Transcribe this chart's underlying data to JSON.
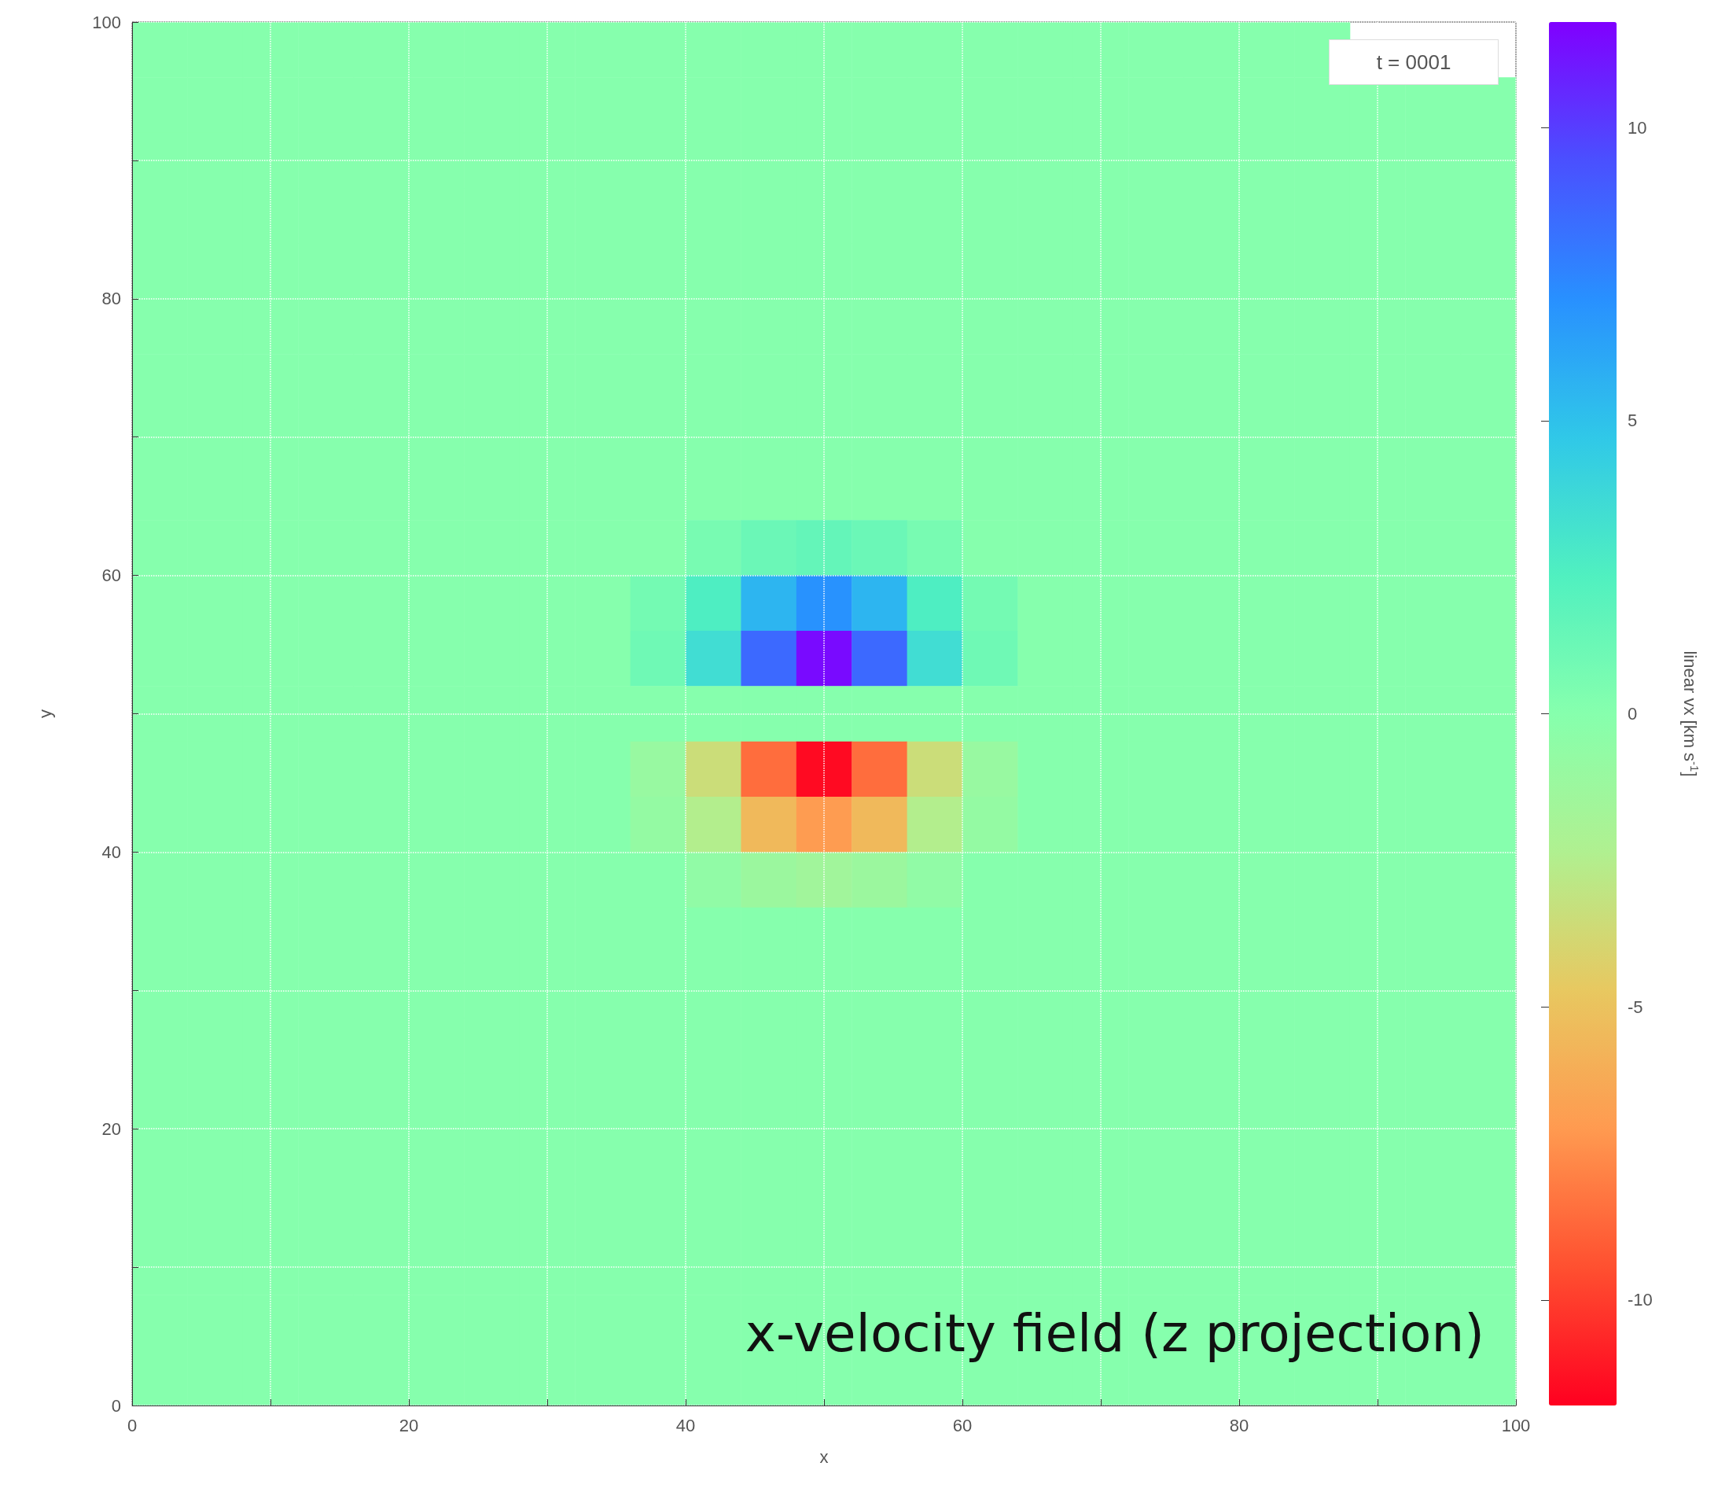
{
  "chart_data": {
    "type": "heatmap",
    "xlabel": "x",
    "ylabel": "y",
    "clabel": "linear vx [km s$^{-1}$]",
    "annotations": [
      "t = 0001",
      "x-velocity field (z projection)"
    ],
    "x": [
      2,
      6,
      10,
      14,
      18,
      22,
      26,
      30,
      34,
      38,
      42,
      46,
      50,
      54,
      58,
      62,
      66,
      70,
      74,
      78,
      82,
      86,
      90,
      94,
      98
    ],
    "y": [
      98,
      94,
      90,
      86,
      82,
      78,
      74,
      70,
      66,
      62,
      58,
      54,
      50,
      46,
      42,
      38,
      34,
      30,
      26,
      22,
      18,
      14,
      10,
      6,
      2
    ],
    "xlim": [
      0,
      100
    ],
    "ylim": [
      0,
      100
    ],
    "xticks": [
      0,
      {
        "value": 10,
        "label": null
      },
      20,
      {
        "value": 30,
        "label": null
      },
      40,
      {
        "value": 50,
        "label": null
      },
      60,
      {
        "value": 70,
        "label": null
      },
      80,
      {
        "value": 90,
        "label": null
      },
      100
    ],
    "yticks": [
      0,
      {
        "value": 10,
        "label": null
      },
      20,
      {
        "value": 30,
        "label": null
      },
      40,
      {
        "value": 50,
        "label": null
      },
      60,
      {
        "value": 70,
        "label": null
      },
      80,
      {
        "value": 90,
        "label": null
      },
      100
    ],
    "clim": [
      -11.8,
      11.8
    ],
    "cticks": [
      -10,
      -5,
      0,
      5,
      10
    ],
    "grid": true,
    "cells": [
      [
        0,
        0,
        0,
        0,
        0,
        0,
        0,
        0,
        0,
        0,
        0,
        0,
        0,
        0,
        0,
        0,
        0,
        0,
        0,
        0,
        0,
        0,
        null,
        null,
        null
      ],
      [
        0,
        0,
        0,
        0,
        0,
        0,
        0,
        0,
        0,
        0,
        0,
        0,
        0,
        0,
        0,
        0,
        0,
        0,
        0,
        0,
        0,
        0,
        0,
        0,
        0
      ],
      [
        0,
        0,
        0,
        0,
        0,
        0,
        0,
        0,
        0,
        0,
        0,
        0,
        0,
        0,
        0,
        0,
        0,
        0,
        0,
        0,
        0,
        0,
        0,
        0,
        0
      ],
      [
        0,
        0,
        0,
        0,
        0,
        0,
        0,
        0,
        0,
        0,
        0,
        0,
        0,
        0,
        0,
        0,
        0,
        0,
        0,
        0,
        0,
        0,
        0,
        0,
        0
      ],
      [
        0,
        0,
        0,
        0,
        0,
        0,
        0,
        0,
        0,
        0,
        0,
        0,
        0,
        0,
        0,
        0,
        0,
        0,
        0,
        0,
        0,
        0,
        0,
        0,
        0
      ],
      [
        0,
        0,
        0,
        0,
        0,
        0,
        0,
        0,
        0,
        0,
        0,
        0,
        0,
        0,
        0,
        0,
        0,
        0,
        0,
        0,
        0,
        0,
        0,
        0,
        0
      ],
      [
        0,
        0,
        0,
        0,
        0,
        0,
        0,
        0,
        0,
        0,
        0,
        0,
        0,
        0,
        0,
        0,
        0,
        0,
        0,
        0,
        0,
        0,
        0,
        0,
        0
      ],
      [
        0,
        0,
        0,
        0,
        0,
        0,
        0,
        0,
        0,
        0,
        0,
        0,
        0,
        0,
        0,
        0,
        0,
        0,
        0,
        0,
        0,
        0,
        0,
        0,
        0
      ],
      [
        0,
        0,
        0,
        0,
        0,
        0,
        0,
        0,
        0,
        0,
        0,
        0,
        0,
        0,
        0,
        0,
        0,
        0,
        0,
        0,
        0,
        0,
        0,
        0,
        0
      ],
      [
        0,
        0,
        0,
        0,
        0,
        0,
        0,
        0,
        0,
        0,
        0.6,
        1.2,
        1.5,
        1.2,
        0.6,
        0,
        0,
        0,
        0,
        0,
        0,
        0,
        0,
        0,
        0
      ],
      [
        0,
        0,
        0,
        0,
        0,
        0,
        0,
        0,
        0,
        0.8,
        2.5,
        5.5,
        7,
        5.5,
        2.5,
        0.8,
        0,
        0,
        0,
        0,
        0,
        0,
        0,
        0,
        0
      ],
      [
        0,
        0,
        0,
        0,
        0,
        0,
        0,
        0,
        0,
        1,
        3.5,
        8.5,
        11.5,
        8.5,
        3.5,
        1,
        0,
        0,
        0,
        0,
        0,
        0,
        0,
        0,
        0
      ],
      [
        0,
        0,
        0,
        0,
        0,
        0,
        0,
        0,
        0,
        0,
        0,
        0,
        0,
        0,
        0,
        0,
        0,
        0,
        0,
        0,
        0,
        0,
        0,
        0,
        0
      ],
      [
        0,
        0,
        0,
        0,
        0,
        0,
        0,
        0,
        0,
        -1,
        -3.5,
        -8.5,
        -11.5,
        -8.5,
        -3.5,
        -1,
        0,
        0,
        0,
        0,
        0,
        0,
        0,
        0,
        0
      ],
      [
        0,
        0,
        0,
        0,
        0,
        0,
        0,
        0,
        0,
        -0.8,
        -2.5,
        -5.5,
        -7,
        -5.5,
        -2.5,
        -0.8,
        0,
        0,
        0,
        0,
        0,
        0,
        0,
        0,
        0
      ],
      [
        0,
        0,
        0,
        0,
        0,
        0,
        0,
        0,
        0,
        0,
        -0.6,
        -1.2,
        -1.5,
        -1.2,
        -0.6,
        0,
        0,
        0,
        0,
        0,
        0,
        0,
        0,
        0,
        0
      ],
      [
        0,
        0,
        0,
        0,
        0,
        0,
        0,
        0,
        0,
        0,
        0,
        0,
        0,
        0,
        0,
        0,
        0,
        0,
        0,
        0,
        0,
        0,
        0,
        0,
        0
      ],
      [
        0,
        0,
        0,
        0,
        0,
        0,
        0,
        0,
        0,
        0,
        0,
        0,
        0,
        0,
        0,
        0,
        0,
        0,
        0,
        0,
        0,
        0,
        0,
        0,
        0
      ],
      [
        0,
        0,
        0,
        0,
        0,
        0,
        0,
        0,
        0,
        0,
        0,
        0,
        0,
        0,
        0,
        0,
        0,
        0,
        0,
        0,
        0,
        0,
        0,
        0,
        0
      ],
      [
        0,
        0,
        0,
        0,
        0,
        0,
        0,
        0,
        0,
        0,
        0,
        0,
        0,
        0,
        0,
        0,
        0,
        0,
        0,
        0,
        0,
        0,
        0,
        0,
        0
      ],
      [
        0,
        0,
        0,
        0,
        0,
        0,
        0,
        0,
        0,
        0,
        0,
        0,
        0,
        0,
        0,
        0,
        0,
        0,
        0,
        0,
        0,
        0,
        0,
        0,
        0
      ],
      [
        0,
        0,
        0,
        0,
        0,
        0,
        0,
        0,
        0,
        0,
        0,
        0,
        0,
        0,
        0,
        0,
        0,
        0,
        0,
        0,
        0,
        0,
        0,
        0,
        0
      ],
      [
        0,
        0,
        0,
        0,
        0,
        0,
        0,
        0,
        0,
        0,
        0,
        0,
        0,
        0,
        0,
        0,
        0,
        0,
        0,
        0,
        0,
        0,
        0,
        0,
        0
      ],
      [
        0,
        0,
        0,
        0,
        0,
        0,
        0,
        0,
        0,
        0,
        0,
        0,
        0,
        0,
        0,
        0,
        0,
        0,
        0,
        0,
        0,
        0,
        0,
        0,
        0
      ],
      [
        0,
        0,
        0,
        0,
        0,
        0,
        0,
        0,
        0,
        0,
        0,
        0,
        0,
        0,
        0,
        0,
        0,
        0,
        0,
        0,
        0,
        0,
        0,
        0,
        0
      ]
    ]
  }
}
